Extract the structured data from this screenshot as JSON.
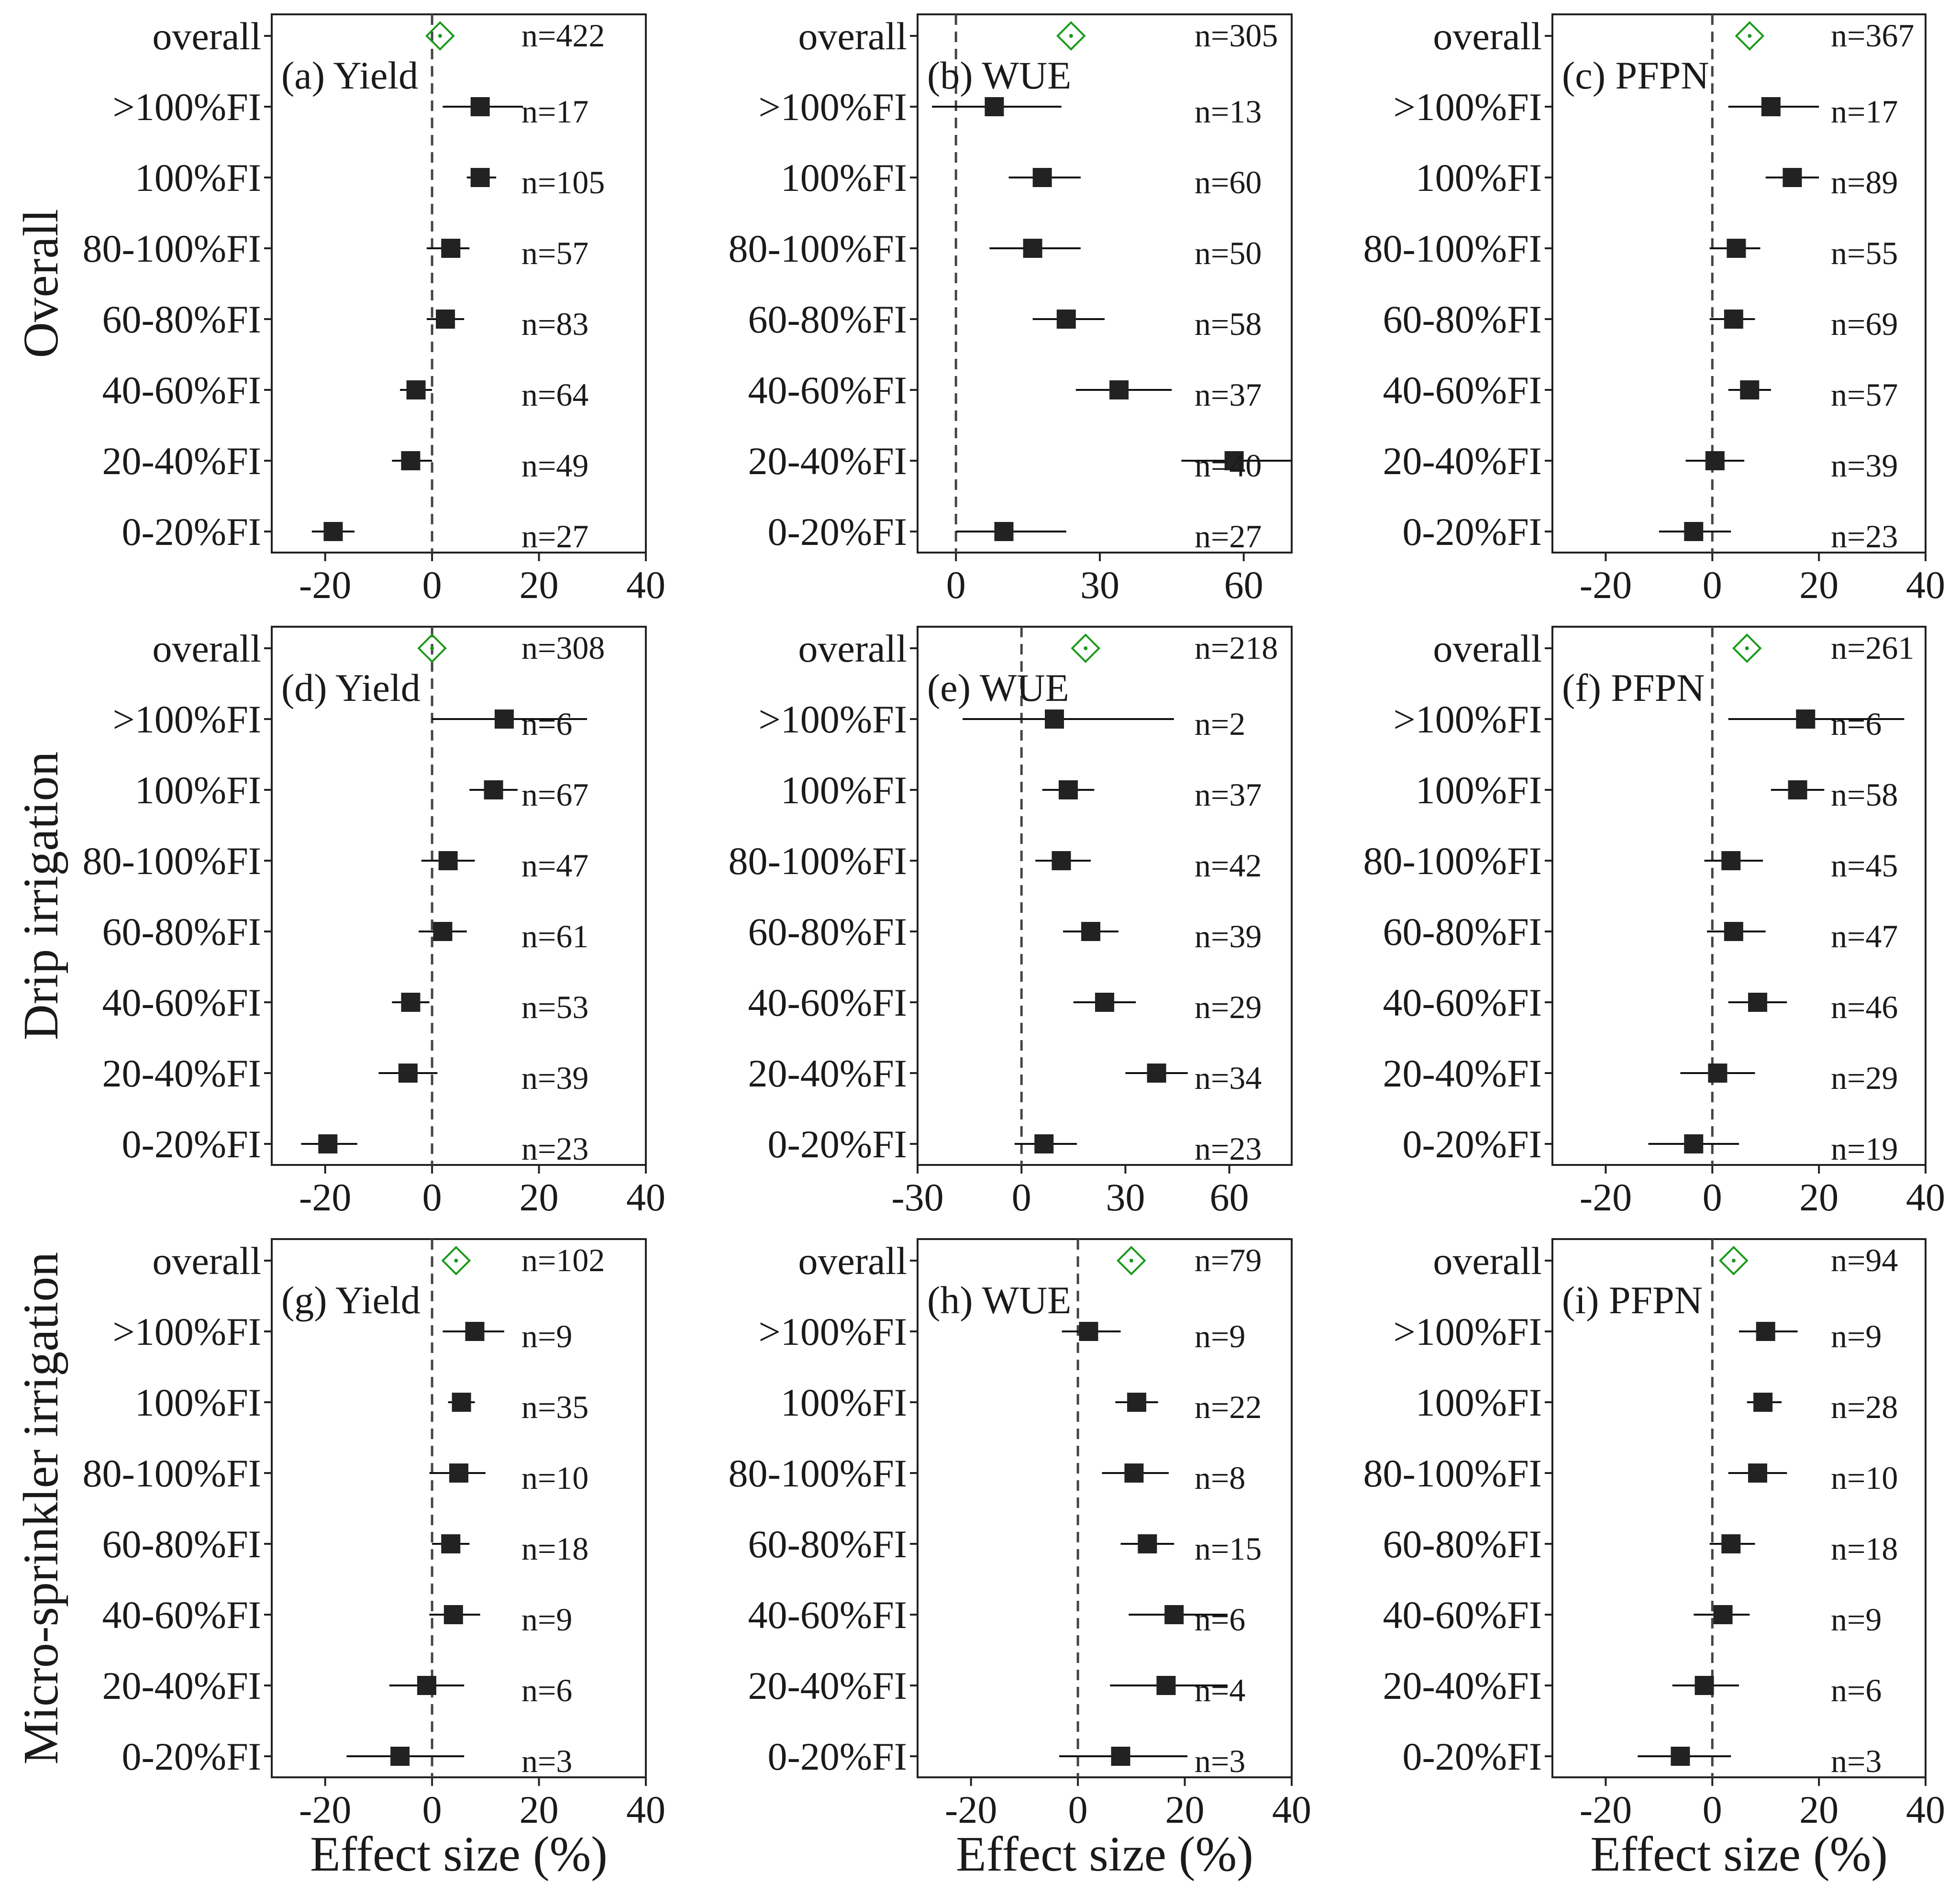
{
  "figure": {
    "x_axis_label": "Effect size (%)",
    "row_titles": [
      "Overall",
      "Drip irrigation",
      "Micro-sprinkler irrigation"
    ],
    "category_labels": [
      "overall",
      ">100%FI",
      "100%FI",
      "80-100%FI",
      "60-80%FI",
      "40-60%FI",
      "20-40%FI",
      "0-20%FI"
    ]
  },
  "chart_data": [
    {
      "type": "forest",
      "panel": "a",
      "title": "(a) Yield",
      "row": "Overall",
      "xlim": [
        -30,
        40
      ],
      "xticks": [
        -20,
        0,
        20,
        40
      ],
      "categories": [
        "overall",
        ">100%FI",
        "100%FI",
        "80-100%FI",
        "60-80%FI",
        "40-60%FI",
        "20-40%FI",
        "0-20%FI"
      ],
      "estimates": [
        1.5,
        9,
        9,
        3.5,
        2.5,
        -3,
        -4,
        -18.5
      ],
      "ci_low": [
        null,
        2,
        6.5,
        -1,
        -1,
        -6,
        -7.5,
        -22.5
      ],
      "ci_high": [
        null,
        17,
        12,
        7,
        6,
        0,
        0,
        -14.5
      ],
      "n": [
        "n=422",
        "n=17",
        "n=105",
        "n=57",
        "n=83",
        "n=64",
        "n=49",
        "n=27"
      ]
    },
    {
      "type": "forest",
      "panel": "b",
      "title": "(b) WUE",
      "row": "Overall",
      "xlim": [
        -8,
        70
      ],
      "xticks": [
        0,
        30,
        60
      ],
      "categories": [
        "overall",
        ">100%FI",
        "100%FI",
        "80-100%FI",
        "60-80%FI",
        "40-60%FI",
        "20-40%FI",
        "0-20%FI"
      ],
      "estimates": [
        24,
        8,
        18,
        16,
        23,
        34,
        58,
        10
      ],
      "ci_low": [
        null,
        -5,
        11,
        7,
        16,
        25,
        47,
        0
      ],
      "ci_high": [
        null,
        22,
        26,
        26,
        31,
        45,
        71,
        23
      ],
      "n": [
        "n=305",
        "n=13",
        "n=60",
        "n=50",
        "n=58",
        "n=37",
        "n=40",
        "n=27"
      ]
    },
    {
      "type": "forest",
      "panel": "c",
      "title": "(c) PFPN",
      "row": "Overall",
      "xlim": [
        -30,
        40
      ],
      "xticks": [
        -20,
        0,
        20,
        40
      ],
      "categories": [
        "overall",
        ">100%FI",
        "100%FI",
        "80-100%FI",
        "60-80%FI",
        "40-60%FI",
        "20-40%FI",
        "0-20%FI"
      ],
      "estimates": [
        7,
        11,
        15,
        4.5,
        4,
        7,
        0.5,
        -3.5
      ],
      "ci_low": [
        null,
        3,
        10,
        -0.5,
        -0.5,
        3,
        -5,
        -10
      ],
      "ci_high": [
        null,
        20,
        20,
        9,
        8,
        11,
        6,
        3.5
      ],
      "n": [
        "n=367",
        "n=17",
        "n=89",
        "n=55",
        "n=69",
        "n=57",
        "n=39",
        "n=23"
      ]
    },
    {
      "type": "forest",
      "panel": "d",
      "title": "(d) Yield",
      "row": "Drip irrigation",
      "xlim": [
        -30,
        40
      ],
      "xticks": [
        -20,
        0,
        20,
        40
      ],
      "categories": [
        "overall",
        ">100%FI",
        "100%FI",
        "80-100%FI",
        "60-80%FI",
        "40-60%FI",
        "20-40%FI",
        "0-20%FI"
      ],
      "estimates": [
        0,
        13.5,
        11.5,
        3,
        2,
        -4,
        -4.5,
        -19.5
      ],
      "ci_low": [
        null,
        0,
        7,
        -2,
        -2.5,
        -7.5,
        -10,
        -24.5
      ],
      "ci_high": [
        null,
        29,
        16,
        8,
        6.5,
        -0.5,
        1,
        -14
      ],
      "n": [
        "n=308",
        "n=6",
        "n=67",
        "n=47",
        "n=61",
        "n=53",
        "n=39",
        "n=23"
      ]
    },
    {
      "type": "forest",
      "panel": "e",
      "title": "(e) WUE",
      "row": "Drip irrigation",
      "xlim": [
        -30,
        78
      ],
      "xticks": [
        -30,
        0,
        30,
        60
      ],
      "categories": [
        "overall",
        ">100%FI",
        "100%FI",
        "80-100%FI",
        "60-80%FI",
        "40-60%FI",
        "20-40%FI",
        "0-20%FI"
      ],
      "estimates": [
        18.5,
        9.5,
        13.5,
        11.5,
        20,
        24,
        39,
        6.5
      ],
      "ci_low": [
        null,
        -17,
        6,
        4,
        12,
        15,
        30,
        -2
      ],
      "ci_high": [
        null,
        44,
        21,
        20,
        28,
        33,
        48,
        16
      ],
      "n": [
        "n=218",
        "n=2",
        "n=37",
        "n=42",
        "n=39",
        "n=29",
        "n=34",
        "n=23"
      ]
    },
    {
      "type": "forest",
      "panel": "f",
      "title": "(f) PFPN",
      "row": "Drip irrigation",
      "xlim": [
        -30,
        40
      ],
      "xticks": [
        -20,
        0,
        20,
        40
      ],
      "categories": [
        "overall",
        ">100%FI",
        "100%FI",
        "80-100%FI",
        "60-80%FI",
        "40-60%FI",
        "20-40%FI",
        "0-20%FI"
      ],
      "estimates": [
        6.5,
        17.5,
        16,
        3.5,
        4,
        8.5,
        1,
        -3.5
      ],
      "ci_low": [
        null,
        3,
        11,
        -1.5,
        -1,
        3,
        -6,
        -12
      ],
      "ci_high": [
        null,
        36,
        21,
        9.5,
        10,
        14,
        8,
        5
      ],
      "n": [
        "n=261",
        "n=6",
        "n=58",
        "n=45",
        "n=47",
        "n=46",
        "n=29",
        "n=19"
      ]
    },
    {
      "type": "forest",
      "panel": "g",
      "title": "(g) Yield",
      "row": "Micro-sprinkler irrigation",
      "xlim": [
        -30,
        40
      ],
      "xticks": [
        -20,
        0,
        20,
        40
      ],
      "categories": [
        "overall",
        ">100%FI",
        "100%FI",
        "80-100%FI",
        "60-80%FI",
        "40-60%FI",
        "20-40%FI",
        "0-20%FI"
      ],
      "estimates": [
        4.5,
        8,
        5.5,
        5,
        3.5,
        4,
        -1,
        -6
      ],
      "ci_low": [
        null,
        2,
        3,
        -0.5,
        0,
        -0.5,
        -8,
        -16
      ],
      "ci_high": [
        null,
        13.5,
        8,
        10,
        7,
        9,
        6,
        6
      ],
      "n": [
        "n=102",
        "n=9",
        "n=35",
        "n=10",
        "n=18",
        "n=9",
        "n=6",
        "n=3"
      ]
    },
    {
      "type": "forest",
      "panel": "h",
      "title": "(h) WUE",
      "row": "Micro-sprinkler irrigation",
      "xlim": [
        -30,
        40
      ],
      "xticks": [
        -20,
        0,
        20,
        40
      ],
      "categories": [
        "overall",
        ">100%FI",
        "100%FI",
        "80-100%FI",
        "60-80%FI",
        "40-60%FI",
        "20-40%FI",
        "0-20%FI"
      ],
      "estimates": [
        10,
        2,
        11,
        10.5,
        13,
        18,
        16.5,
        8
      ],
      "ci_low": [
        null,
        -3,
        7,
        4.5,
        8,
        9.5,
        6,
        -3.5
      ],
      "ci_high": [
        null,
        8,
        15,
        17,
        18,
        28,
        28,
        20.5
      ],
      "n": [
        "n=79",
        "n=9",
        "n=22",
        "n=8",
        "n=15",
        "n=6",
        "n=4",
        "n=3"
      ]
    },
    {
      "type": "forest",
      "panel": "i",
      "title": "(i) PFPN",
      "row": "Micro-sprinkler irrigation",
      "xlim": [
        -30,
        40
      ],
      "xticks": [
        -20,
        0,
        20,
        40
      ],
      "categories": [
        "overall",
        ">100%FI",
        "100%FI",
        "80-100%FI",
        "60-80%FI",
        "40-60%FI",
        "20-40%FI",
        "0-20%FI"
      ],
      "estimates": [
        4,
        10,
        9.5,
        8.5,
        3.5,
        2,
        -1.5,
        -6
      ],
      "ci_low": [
        null,
        5,
        6.5,
        3,
        -0.5,
        -3.5,
        -7.5,
        -14
      ],
      "ci_high": [
        null,
        16,
        13,
        14,
        8,
        7,
        5,
        3.5
      ],
      "n": [
        "n=94",
        "n=9",
        "n=28",
        "n=10",
        "n=18",
        "n=9",
        "n=6",
        "n=3"
      ]
    }
  ]
}
